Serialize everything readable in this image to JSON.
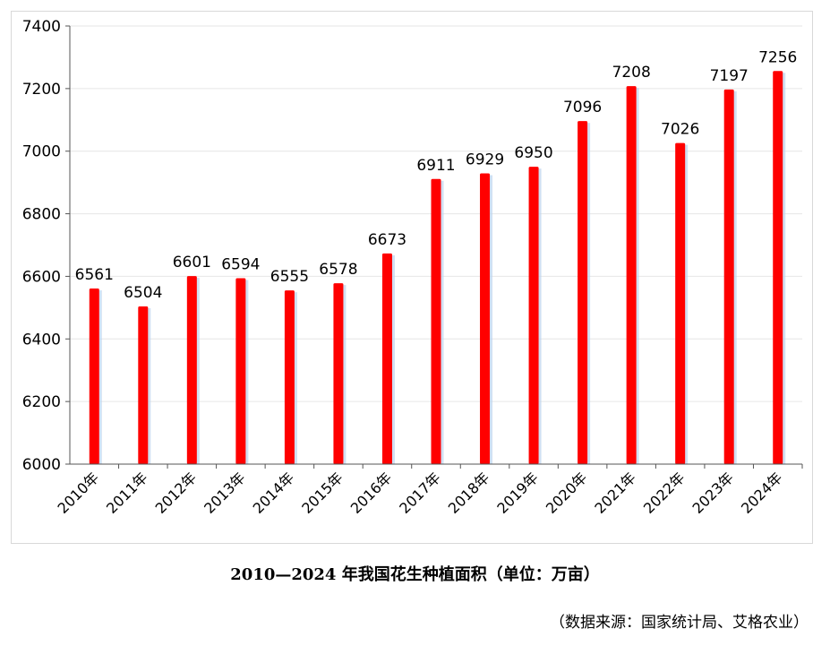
{
  "chart_data": {
    "type": "bar",
    "title": "2010—2024 年我国花生种植面积（单位：万亩）",
    "source": "（数据来源：国家统计局、艾格农业）",
    "xlabel": "",
    "ylabel": "",
    "categories": [
      "2010年",
      "2011年",
      "2012年",
      "2013年",
      "2014年",
      "2015年",
      "2016年",
      "2017年",
      "2018年",
      "2019年",
      "2020年",
      "2021年",
      "2022年",
      "2023年",
      "2024年"
    ],
    "values": [
      6561,
      6504,
      6601,
      6594,
      6555,
      6578,
      6673,
      6911,
      6929,
      6950,
      7096,
      7208,
      7026,
      7197,
      7256
    ],
    "ylim": [
      6000,
      7400
    ],
    "yticks": [
      6000,
      6200,
      6400,
      6600,
      6800,
      7000,
      7200,
      7400
    ],
    "bar_color": "#ff0000",
    "grid": true
  }
}
